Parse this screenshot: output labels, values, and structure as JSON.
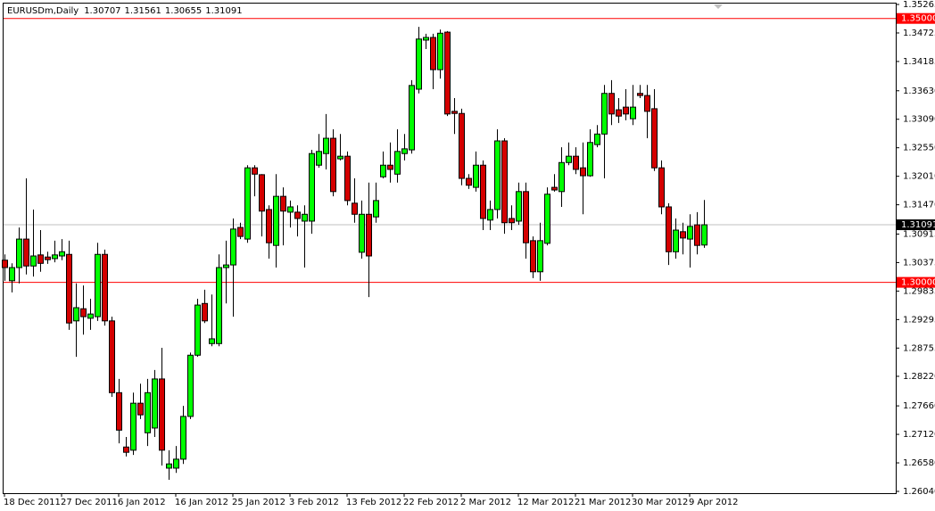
{
  "chart_data": {
    "type": "candlestick",
    "title": "EURUSDm,Daily",
    "categories": [
      "18 Dec 2011",
      null,
      null,
      null,
      null,
      null,
      null,
      null,
      "27 Dec 2011",
      null,
      null,
      null,
      null,
      null,
      null,
      null,
      "6 Jan 2012",
      null,
      null,
      null,
      null,
      null,
      null,
      null,
      "16 Jan 2012",
      null,
      null,
      null,
      null,
      null,
      null,
      null,
      "25 Jan 2012",
      null,
      null,
      null,
      null,
      null,
      null,
      null,
      "3 Feb 2012",
      null,
      null,
      null,
      null,
      null,
      null,
      null,
      "13 Feb 2012",
      null,
      null,
      null,
      null,
      null,
      null,
      null,
      "22 Feb 2012",
      null,
      null,
      null,
      null,
      null,
      null,
      null,
      "2 Mar 2012",
      null,
      null,
      null,
      null,
      null,
      null,
      null,
      "12 Mar 2012",
      null,
      null,
      null,
      null,
      null,
      null,
      null,
      "21 Mar 2012",
      null,
      null,
      null,
      null,
      null,
      null,
      null,
      "30 Mar 2012",
      null,
      null,
      null,
      null,
      null,
      null,
      null,
      "9 Apr 2012",
      null,
      null
    ],
    "open": [
      1.3042,
      1.3003,
      1.3028,
      1.3082,
      1.3031,
      1.3052,
      1.3048,
      1.3045,
      1.305,
      1.3053,
      1.2927,
      1.295,
      1.2932,
      1.2935,
      1.3053,
      1.2927,
      1.2791,
      1.2688,
      1.2682,
      1.2771,
      1.2715,
      1.2724,
      1.2817,
      1.2648,
      1.2648,
      1.2665,
      1.2746,
      1.2862,
      1.296,
      1.2884,
      1.2884,
      1.3028,
      1.3033,
      1.3104,
      1.3082,
      1.3217,
      1.3204,
      1.3138,
      1.307,
      1.3163,
      1.3133,
      1.3133,
      1.3116,
      1.3116,
      1.3222,
      1.3244,
      1.3273,
      1.3234,
      1.3239,
      1.315,
      1.3057,
      1.3129,
      1.3124,
      1.32,
      1.3222,
      1.3205,
      1.3244,
      1.3251,
      1.3366,
      1.3459,
      1.3464,
      1.3403,
      1.3474,
      1.3324,
      1.332,
      1.3197,
      1.318,
      1.3222,
      1.3118,
      1.3138,
      1.3268,
      1.3121,
      1.3116,
      1.3172,
      1.3079,
      1.302,
      1.3074,
      1.318,
      1.3172,
      1.3227,
      1.3239,
      1.3217,
      1.3202,
      1.3261,
      1.3281,
      1.3358,
      1.3327,
      1.3332,
      1.331,
      1.3358,
      1.3354,
      1.3329,
      1.3217,
      1.3143,
      1.3058,
      1.3096,
      1.3082,
      1.3109,
      1.30707
    ],
    "high": [
      1.3053,
      1.3036,
      1.3104,
      1.3197,
      1.3138,
      1.3099,
      1.3058,
      1.3079,
      1.3082,
      1.3079,
      1.2998,
      1.2994,
      1.2969,
      1.3075,
      1.3062,
      1.2935,
      1.2817,
      1.2707,
      1.2791,
      1.2808,
      1.2817,
      1.2834,
      1.2876,
      1.2682,
      1.269,
      1.2766,
      1.2867,
      1.2969,
      1.2986,
      1.2977,
      1.3053,
      1.3079,
      1.3121,
      1.3113,
      1.3222,
      1.3222,
      1.3205,
      1.3146,
      1.3205,
      1.318,
      1.3155,
      1.3146,
      1.3146,
      1.3251,
      1.3281,
      1.3319,
      1.329,
      1.3281,
      1.3248,
      1.3197,
      1.3155,
      1.3189,
      1.3189,
      1.3248,
      1.3265,
      1.329,
      1.3281,
      1.3383,
      1.3484,
      1.3471,
      1.3471,
      1.3479,
      1.3476,
      1.3349,
      1.3329,
      1.3205,
      1.3248,
      1.3231,
      1.3155,
      1.329,
      1.3273,
      1.3146,
      1.3189,
      1.3189,
      1.3087,
      1.3113,
      1.318,
      1.3205,
      1.3256,
      1.3265,
      1.3256,
      1.3265,
      1.329,
      1.3298,
      1.3374,
      1.3383,
      1.3349,
      1.3366,
      1.3374,
      1.3374,
      1.3374,
      1.3366,
      1.3231,
      1.315,
      1.3121,
      1.3113,
      1.3129,
      1.3133,
      1.31561
    ],
    "low": [
      1.3003,
      1.2981,
      1.2998,
      1.3015,
      1.3011,
      1.302,
      1.3035,
      1.3038,
      1.3042,
      1.291,
      1.2859,
      1.2901,
      1.291,
      1.2927,
      1.2918,
      1.2783,
      1.2695,
      1.267,
      1.2673,
      1.2741,
      1.269,
      1.2707,
      1.2653,
      1.2626,
      1.2639,
      1.2656,
      1.2741,
      1.2859,
      1.2923,
      1.2879,
      1.2879,
      1.296,
      1.2935,
      1.3082,
      1.3075,
      1.3163,
      1.3087,
      1.3045,
      1.3028,
      1.307,
      1.3104,
      1.3087,
      1.3028,
      1.3092,
      1.3217,
      1.3214,
      1.3163,
      1.3231,
      1.3146,
      1.3113,
      1.3045,
      1.2972,
      1.3113,
      1.3197,
      1.3189,
      1.3189,
      1.3231,
      1.3244,
      1.3358,
      1.3442,
      1.3366,
      1.3386,
      1.3315,
      1.3281,
      1.3184,
      1.3177,
      1.3172,
      1.3099,
      1.3099,
      1.3121,
      1.3092,
      1.3099,
      1.3109,
      1.3045,
      1.3008,
      1.3003,
      1.307,
      1.3172,
      1.3143,
      1.3222,
      1.3205,
      1.3129,
      1.32,
      1.3256,
      1.3197,
      1.3298,
      1.3302,
      1.3307,
      1.3298,
      1.3349,
      1.3273,
      1.3211,
      1.3129,
      1.3033,
      1.3045,
      1.3053,
      1.3028,
      1.3053,
      1.30655
    ],
    "close": [
      1.3028,
      1.3028,
      1.3082,
      1.3031,
      1.305,
      1.3036,
      1.3043,
      1.3052,
      1.3058,
      1.2923,
      1.2952,
      1.2935,
      1.294,
      1.3053,
      1.2927,
      1.2791,
      1.272,
      1.2678,
      1.2771,
      1.2749,
      1.2791,
      1.2817,
      1.2682,
      1.2656,
      1.2665,
      1.2746,
      1.2862,
      1.2957,
      1.2927,
      1.2893,
      1.3028,
      1.3033,
      1.3101,
      1.3087,
      1.3217,
      1.3205,
      1.3135,
      1.3075,
      1.3163,
      1.3135,
      1.3143,
      1.3121,
      1.3129,
      1.3244,
      1.3248,
      1.3273,
      1.3172,
      1.3239,
      1.3155,
      1.3129,
      1.3129,
      1.305,
      1.3155,
      1.3222,
      1.3214,
      1.3248,
      1.3253,
      1.3373,
      1.3461,
      1.3464,
      1.3403,
      1.3472,
      1.3319,
      1.332,
      1.3197,
      1.3184,
      1.3222,
      1.3121,
      1.3138,
      1.3268,
      1.3113,
      1.3113,
      1.3172,
      1.3075,
      1.302,
      1.3079,
      1.3167,
      1.3175,
      1.3227,
      1.3239,
      1.3214,
      1.3202,
      1.3265,
      1.3281,
      1.3358,
      1.3319,
      1.3315,
      1.3319,
      1.3332,
      1.3354,
      1.3324,
      1.3217,
      1.3143,
      1.3058,
      1.3099,
      1.3084,
      1.3106,
      1.307,
      1.31091
    ],
    "up_color": "#00ff00",
    "down_color": "#d40000",
    "ylim": [
      1.26006,
      1.35282
    ],
    "yticks": [
      1.35265,
      1.34725,
      1.34185,
      {
        "value": 1.3363,
        "label": "1.33630"
      },
      {
        "value": 1.3309,
        "label": "1.33090"
      },
      {
        "value": 1.3255,
        "label": "1.32550"
      },
      {
        "value": 1.3201,
        "label": "1.32010"
      },
      {
        "value": 1.3147,
        "label": "1.31470"
      },
      1.30915,
      1.30375,
      1.29835,
      1.29295,
      1.28755,
      {
        "value": 1.2822,
        "label": "1.28220"
      },
      {
        "value": 1.2766,
        "label": "1.27660"
      },
      {
        "value": 1.2712,
        "label": "1.27120"
      },
      {
        "value": 1.2658,
        "label": "1.26580"
      },
      {
        "value": 1.2604,
        "label": "1.26040"
      }
    ],
    "hlines": [
      {
        "value": 1.35,
        "label": "1.35000",
        "color": "#ff0000"
      },
      {
        "value": 1.3,
        "label": "1.30000",
        "color": "#ff0000"
      }
    ],
    "price_line_color": "#c0c0c0"
  }
}
